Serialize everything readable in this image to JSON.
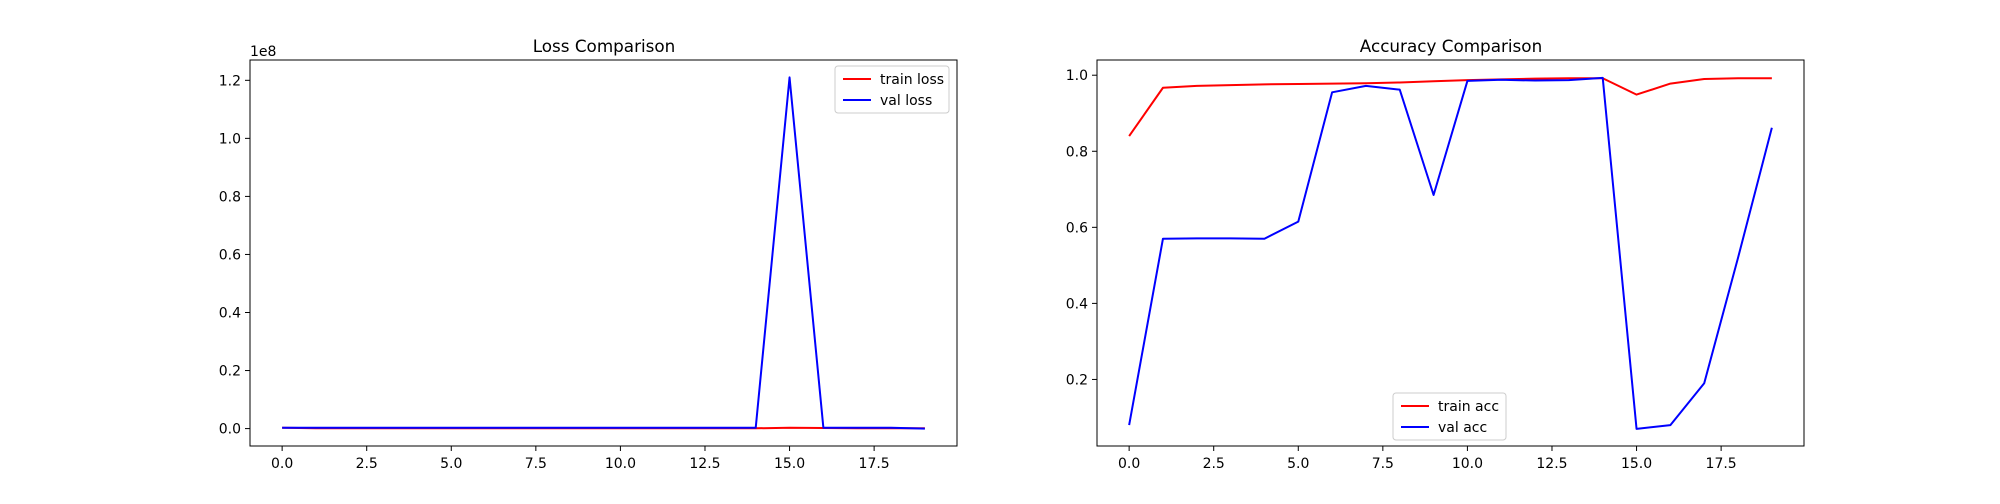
{
  "chart_data": [
    {
      "type": "line",
      "title": "Loss Comparison",
      "xlabel": "",
      "ylabel": "",
      "xlim": [
        -0.95,
        19.95
      ],
      "ylim": [
        -6000000,
        127000000
      ],
      "xticks": [
        0.0,
        2.5,
        5.0,
        7.5,
        10.0,
        12.5,
        15.0,
        17.5
      ],
      "xtick_labels": [
        "0.0",
        "2.5",
        "5.0",
        "7.5",
        "10.0",
        "12.5",
        "15.0",
        "17.5"
      ],
      "yticks": [
        0,
        20000000,
        40000000,
        60000000,
        80000000,
        100000000,
        120000000
      ],
      "ytick_labels": [
        "0.0",
        "0.2",
        "0.4",
        "0.6",
        "0.8",
        "1.0",
        "1.2"
      ],
      "y_offset_text": "1e8",
      "grid": false,
      "legend_position": "upper right",
      "x": [
        0,
        1,
        2,
        3,
        4,
        5,
        6,
        7,
        8,
        9,
        10,
        11,
        12,
        13,
        14,
        15,
        16,
        17,
        18,
        19
      ],
      "series": [
        {
          "name": "train loss",
          "color": "#ff0000",
          "values": [
            300000,
            100000,
            100000,
            100000,
            100000,
            100000,
            100000,
            100000,
            100000,
            100000,
            100000,
            100000,
            100000,
            100000,
            100000,
            300000,
            200000,
            100000,
            100000,
            100000
          ]
        },
        {
          "name": "val loss",
          "color": "#0000ff",
          "values": [
            300000,
            300000,
            300000,
            300000,
            300000,
            300000,
            300000,
            300000,
            300000,
            300000,
            300000,
            300000,
            300000,
            300000,
            300000,
            121000000,
            300000,
            300000,
            300000,
            0
          ]
        }
      ]
    },
    {
      "type": "line",
      "title": "Accuracy Comparison",
      "xlabel": "",
      "ylabel": "",
      "xlim": [
        -0.95,
        19.95
      ],
      "ylim": [
        0.025,
        1.04
      ],
      "xticks": [
        0.0,
        2.5,
        5.0,
        7.5,
        10.0,
        12.5,
        15.0,
        17.5
      ],
      "xtick_labels": [
        "0.0",
        "2.5",
        "5.0",
        "7.5",
        "10.0",
        "12.5",
        "15.0",
        "17.5"
      ],
      "yticks": [
        0.2,
        0.4,
        0.6,
        0.8,
        1.0
      ],
      "ytick_labels": [
        "0.2",
        "0.4",
        "0.6",
        "0.8",
        "1.0"
      ],
      "grid": false,
      "legend_position": "lower center",
      "x": [
        0,
        1,
        2,
        3,
        4,
        5,
        6,
        7,
        8,
        9,
        10,
        11,
        12,
        13,
        14,
        15,
        16,
        17,
        18,
        19
      ],
      "series": [
        {
          "name": "train acc",
          "color": "#ff0000",
          "values": [
            0.84,
            0.967,
            0.972,
            0.974,
            0.976,
            0.977,
            0.978,
            0.979,
            0.981,
            0.984,
            0.987,
            0.989,
            0.991,
            0.992,
            0.992,
            0.949,
            0.978,
            0.99,
            0.992,
            0.992
          ]
        },
        {
          "name": "val acc",
          "color": "#0000ff",
          "values": [
            0.08,
            0.57,
            0.571,
            0.571,
            0.57,
            0.615,
            0.955,
            0.972,
            0.962,
            0.685,
            0.985,
            0.988,
            0.986,
            0.987,
            0.993,
            0.07,
            0.08,
            0.19,
            0.52,
            0.862
          ]
        }
      ]
    }
  ]
}
